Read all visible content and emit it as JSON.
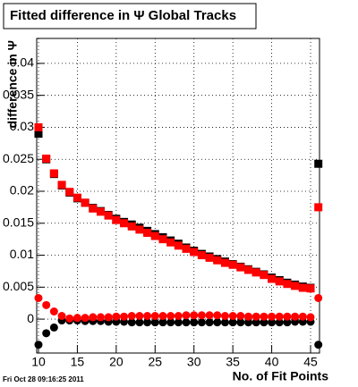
{
  "chart_data": {
    "type": "scatter",
    "title": "Fitted difference in Ψ   Global Tracks",
    "y_label": "difference in Ψ",
    "x_label": "No. of Fit Points",
    "footer": "Fri Oct 28 09:16:25 2011",
    "x": [
      10,
      11,
      12,
      13,
      14,
      15,
      16,
      17,
      18,
      19,
      20,
      21,
      22,
      23,
      24,
      25,
      26,
      27,
      28,
      29,
      30,
      31,
      32,
      33,
      34,
      35,
      36,
      37,
      38,
      39,
      40,
      41,
      42,
      43,
      44,
      45,
      46
    ],
    "series": [
      {
        "color": "#000000",
        "marker": "square",
        "values": [
          0.029,
          0.025,
          0.0227,
          0.0209,
          0.0198,
          0.0189,
          0.0182,
          0.0174,
          0.0169,
          0.0163,
          0.0157,
          0.0152,
          0.0148,
          0.0143,
          0.0138,
          0.0133,
          0.0128,
          0.0123,
          0.0118,
          0.0112,
          0.0107,
          0.0102,
          0.0098,
          0.0094,
          0.009,
          0.0086,
          0.0082,
          0.0078,
          0.0074,
          0.007,
          0.0065,
          0.0061,
          0.0057,
          0.0054,
          0.0051,
          0.0049,
          0.0243
        ]
      },
      {
        "color": "#ff0000",
        "marker": "square",
        "values": [
          0.03,
          0.0251,
          0.0228,
          0.021,
          0.0199,
          0.019,
          0.0182,
          0.0173,
          0.0168,
          0.0162,
          0.0155,
          0.015,
          0.0145,
          0.014,
          0.0135,
          0.013,
          0.0125,
          0.012,
          0.0115,
          0.011,
          0.0105,
          0.01,
          0.0096,
          0.0092,
          0.0088,
          0.0085,
          0.0081,
          0.0077,
          0.0073,
          0.0069,
          0.0063,
          0.0059,
          0.0055,
          0.0052,
          0.0049,
          0.0048,
          0.0175
        ]
      },
      {
        "color": "#000000",
        "marker": "circle",
        "values": [
          -0.004,
          -0.0022,
          -0.0013,
          -0.0002,
          -0.0002,
          -0.0002,
          -0.0003,
          -0.0003,
          -0.0003,
          -0.0004,
          -0.0004,
          -0.0004,
          -0.0005,
          -0.0005,
          -0.0005,
          -0.0005,
          -0.0005,
          -0.0005,
          -0.0005,
          -0.0005,
          -0.0005,
          -0.0005,
          -0.0005,
          -0.0005,
          -0.0005,
          -0.0005,
          -0.0005,
          -0.0005,
          -0.0005,
          -0.0005,
          -0.0005,
          -0.0005,
          -0.0005,
          -0.0004,
          -0.0004,
          -0.0004,
          -0.004
        ]
      },
      {
        "color": "#ff0000",
        "marker": "circle",
        "values": [
          0.0033,
          0.0022,
          0.0012,
          0.0005,
          0.0001,
          0.0002,
          0.0002,
          0.0003,
          0.0003,
          0.0003,
          0.0004,
          0.0004,
          0.0005,
          0.0005,
          0.0005,
          0.0005,
          0.0005,
          0.0005,
          0.0005,
          0.0006,
          0.0006,
          0.0006,
          0.0006,
          0.0006,
          0.0005,
          0.0005,
          0.0005,
          0.0004,
          0.0004,
          0.0004,
          0.0004,
          0.0004,
          0.0004,
          0.0004,
          0.0004,
          0.0003,
          0.0033
        ]
      }
    ],
    "xlim": [
      9.77,
      46.15
    ],
    "xticks": [
      10,
      15,
      20,
      25,
      30,
      35,
      40,
      45
    ],
    "ylim": [
      -0.0053,
      0.0439
    ],
    "yticks": [
      0,
      0.005,
      0.01,
      0.015,
      0.02,
      0.025,
      0.03,
      0.035,
      0.04
    ],
    "grid": true
  }
}
